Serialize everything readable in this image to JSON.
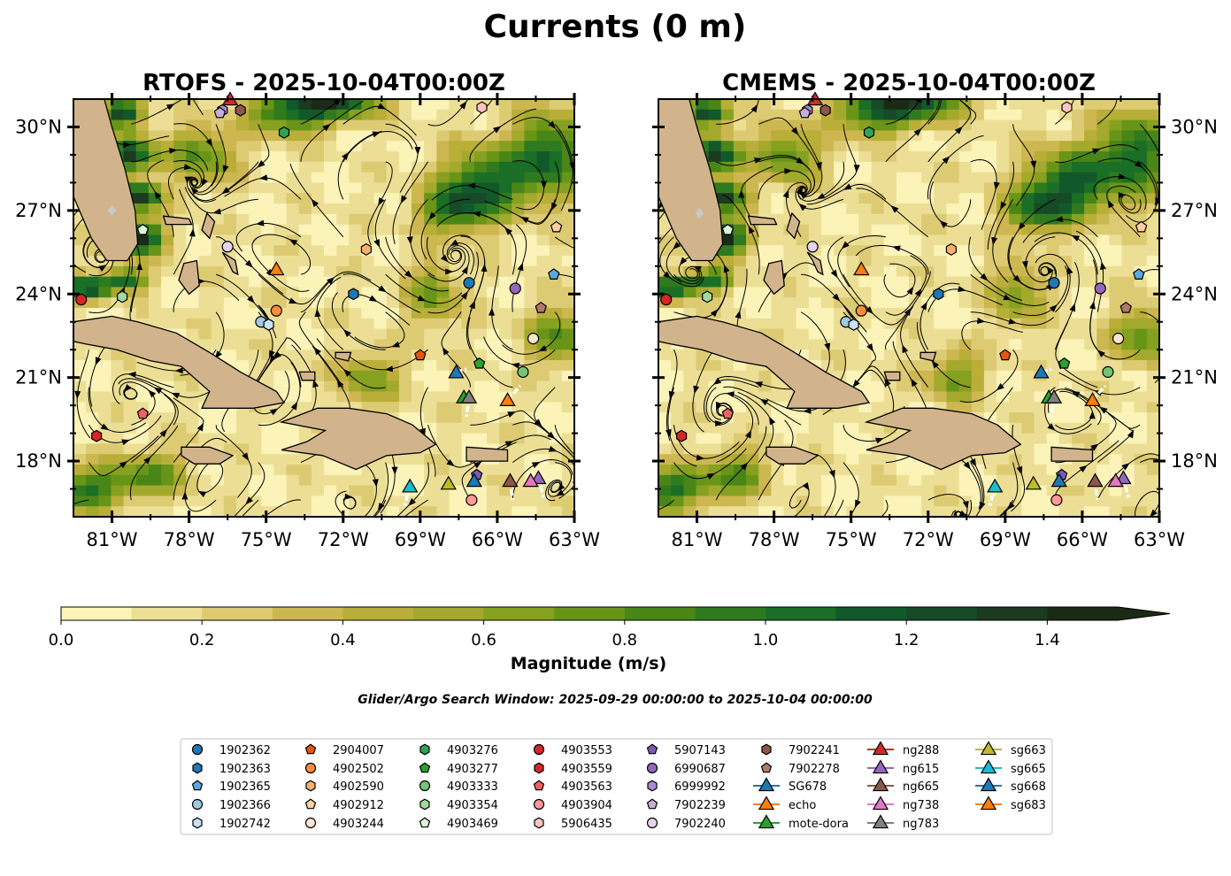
{
  "chart_data": {
    "type": "map",
    "title": "Currents (0 m)",
    "panels": [
      {
        "title": "RTOFS - 2025-10-04T00:00Z",
        "model": "RTOFS",
        "shadow_lon": -81,
        "shadow_lat": 27
      },
      {
        "title": "CMEMS - 2025-10-04T00:00Z",
        "model": "CMEMS",
        "shadow_lon": -80.9,
        "shadow_lat": 26.9
      }
    ],
    "extent": {
      "lon_min": -82.5,
      "lon_max": -63,
      "lat_min": 16,
      "lat_max": 31
    },
    "x_ticks": [
      {
        "value": -81,
        "label": "81°W"
      },
      {
        "value": -78,
        "label": "78°W"
      },
      {
        "value": -75,
        "label": "75°W"
      },
      {
        "value": -72,
        "label": "72°W"
      },
      {
        "value": -69,
        "label": "69°W"
      },
      {
        "value": -66,
        "label": "66°W"
      },
      {
        "value": -63,
        "label": "63°W"
      }
    ],
    "y_ticks": [
      {
        "value": 18,
        "label": "18°N"
      },
      {
        "value": 21,
        "label": "21°N"
      },
      {
        "value": 24,
        "label": "24°N"
      },
      {
        "value": 27,
        "label": "27°N"
      },
      {
        "value": 30,
        "label": "30°N"
      }
    ],
    "colorbar": {
      "label": "Magnitude (m/s)",
      "min": 0,
      "max": 1.5,
      "step": 0.1,
      "extend": "max",
      "ticks": [
        "0.0",
        "0.2",
        "0.4",
        "0.6",
        "0.8",
        "1.0",
        "1.2",
        "1.4"
      ],
      "colors": [
        "#fbf3b8",
        "#ecdf95",
        "#ddcb73",
        "#cdb751",
        "#b9ae37",
        "#a3a92c",
        "#86a020",
        "#689518",
        "#4a8617",
        "#2f7a1f",
        "#1a6e26",
        "#11592a",
        "#174a27",
        "#1c3a20",
        "#1b2a16"
      ]
    },
    "search_window": "Glider/Argo Search Window: 2025-09-29 00:00:00 to 2025-10-04 00:00:00",
    "land": [
      {
        "name": "Florida",
        "points": [
          [
            -82.5,
            31
          ],
          [
            -81.3,
            31
          ],
          [
            -81,
            30
          ],
          [
            -80.5,
            28.5
          ],
          [
            -80.1,
            27
          ],
          [
            -80,
            25.8
          ],
          [
            -80.4,
            25.2
          ],
          [
            -81.2,
            25.2
          ],
          [
            -81.8,
            26
          ],
          [
            -82.5,
            27.5
          ]
        ]
      },
      {
        "name": "Cuba",
        "points": [
          [
            -82.5,
            23
          ],
          [
            -81,
            23.2
          ],
          [
            -80,
            23
          ],
          [
            -78.5,
            22.6
          ],
          [
            -77.2,
            21.9
          ],
          [
            -76,
            21.2
          ],
          [
            -74.6,
            20.5
          ],
          [
            -74.3,
            20.1
          ],
          [
            -75.5,
            19.9
          ],
          [
            -77.5,
            19.9
          ],
          [
            -77.2,
            20.5
          ],
          [
            -78.3,
            21.4
          ],
          [
            -79.5,
            21.6
          ],
          [
            -80.8,
            22
          ],
          [
            -82,
            22.2
          ],
          [
            -82.5,
            22.3
          ]
        ]
      },
      {
        "name": "Hispaniola",
        "points": [
          [
            -74.4,
            19.4
          ],
          [
            -73,
            19.9
          ],
          [
            -71.8,
            19.9
          ],
          [
            -70.3,
            19.7
          ],
          [
            -69.3,
            19.3
          ],
          [
            -68.4,
            18.6
          ],
          [
            -69,
            18.3
          ],
          [
            -70.3,
            18.2
          ],
          [
            -71.5,
            17.7
          ],
          [
            -72.8,
            18.2
          ],
          [
            -74.4,
            18.4
          ],
          [
            -73.4,
            18.7
          ],
          [
            -72.7,
            19.1
          ]
        ]
      },
      {
        "name": "Jamaica",
        "points": [
          [
            -78.3,
            18.5
          ],
          [
            -77.2,
            18.5
          ],
          [
            -76.3,
            18.2
          ],
          [
            -76.8,
            17.9
          ],
          [
            -77.8,
            17.9
          ],
          [
            -78.3,
            18.2
          ]
        ]
      },
      {
        "name": "Puerto Rico",
        "points": [
          [
            -67.2,
            18.5
          ],
          [
            -65.6,
            18.4
          ],
          [
            -65.6,
            18
          ],
          [
            -67.2,
            18
          ]
        ]
      },
      {
        "name": "Andros",
        "points": [
          [
            -78.2,
            25.1
          ],
          [
            -77.7,
            25.2
          ],
          [
            -77.6,
            24.3
          ],
          [
            -78,
            24
          ],
          [
            -78.4,
            24.5
          ]
        ]
      },
      {
        "name": "Grand Bahama",
        "points": [
          [
            -79,
            26.8
          ],
          [
            -78,
            26.7
          ],
          [
            -77.9,
            26.5
          ],
          [
            -78.9,
            26.5
          ]
        ]
      },
      {
        "name": "Abaco",
        "points": [
          [
            -77.3,
            26.9
          ],
          [
            -77,
            26.6
          ],
          [
            -77.2,
            26
          ],
          [
            -77.5,
            26.3
          ]
        ]
      },
      {
        "name": "Eleuthera",
        "points": [
          [
            -76.7,
            25.5
          ],
          [
            -76.2,
            25.2
          ],
          [
            -76.1,
            24.7
          ],
          [
            -76.3,
            24.8
          ],
          [
            -76.5,
            25.2
          ]
        ]
      },
      {
        "name": "Long Island",
        "points": [
          [
            -75.3,
            23.6
          ],
          [
            -75,
            23.2
          ],
          [
            -74.9,
            23.1
          ],
          [
            -75.1,
            23.4
          ]
        ]
      },
      {
        "name": "Inagua",
        "points": [
          [
            -73.7,
            21.2
          ],
          [
            -73.1,
            21.2
          ],
          [
            -73.1,
            20.9
          ],
          [
            -73.6,
            20.9
          ]
        ]
      },
      {
        "name": "Caicos",
        "points": [
          [
            -72.3,
            21.9
          ],
          [
            -71.7,
            21.9
          ],
          [
            -71.8,
            21.6
          ],
          [
            -72.3,
            21.7
          ]
        ]
      }
    ],
    "markers": [
      {
        "id": "1902362",
        "shape": "circle",
        "color": "#1f77b4"
      },
      {
        "id": "1902363",
        "shape": "hexagon",
        "color": "#1f77b4"
      },
      {
        "id": "1902365",
        "shape": "pentagon",
        "color": "#5aa8de"
      },
      {
        "id": "1902366",
        "shape": "circle",
        "color": "#9ecae1"
      },
      {
        "id": "1902742",
        "shape": "hexagon",
        "color": "#c6e2f5"
      },
      {
        "id": "2904007",
        "shape": "pentagon",
        "color": "#e6550d"
      },
      {
        "id": "4902502",
        "shape": "circle",
        "color": "#fd8d3c"
      },
      {
        "id": "4902590",
        "shape": "hexagon",
        "color": "#fdae6b"
      },
      {
        "id": "4902912",
        "shape": "pentagon",
        "color": "#fdd0a2"
      },
      {
        "id": "4903244",
        "shape": "circle",
        "color": "#fee6ce"
      },
      {
        "id": "4903276",
        "shape": "hexagon",
        "color": "#31a354"
      },
      {
        "id": "4903277",
        "shape": "pentagon",
        "color": "#2ca02c"
      },
      {
        "id": "4903333",
        "shape": "circle",
        "color": "#74c476"
      },
      {
        "id": "4903354",
        "shape": "hexagon",
        "color": "#a1d99b"
      },
      {
        "id": "4903469",
        "shape": "pentagon",
        "color": "#d9f4d3"
      },
      {
        "id": "4903553",
        "shape": "circle",
        "color": "#d62728"
      },
      {
        "id": "4903559",
        "shape": "hexagon",
        "color": "#d62728"
      },
      {
        "id": "4903563",
        "shape": "pentagon",
        "color": "#f06262"
      },
      {
        "id": "4903904",
        "shape": "circle",
        "color": "#ff9896"
      },
      {
        "id": "5906435",
        "shape": "hexagon",
        "color": "#ffc4c2"
      },
      {
        "id": "5907143",
        "shape": "pentagon",
        "color": "#7b5ab6"
      },
      {
        "id": "6990687",
        "shape": "circle",
        "color": "#9467bd"
      },
      {
        "id": "6999992",
        "shape": "hexagon",
        "color": "#a98bd3"
      },
      {
        "id": "7902239",
        "shape": "pentagon",
        "color": "#c5b0d5"
      },
      {
        "id": "7902240",
        "shape": "circle",
        "color": "#e5d3f0"
      },
      {
        "id": "7902241",
        "shape": "hexagon",
        "color": "#8c564b"
      },
      {
        "id": "7902278",
        "shape": "pentagon",
        "color": "#b07a6a"
      },
      {
        "id": "SG678",
        "shape": "triangle",
        "color": "#1f77b4"
      },
      {
        "id": "echo",
        "shape": "triangle",
        "color": "#ff7f0e"
      },
      {
        "id": "mote-dora",
        "shape": "triangle",
        "color": "#2ca02c"
      },
      {
        "id": "ng288",
        "shape": "triangle",
        "color": "#d62728"
      },
      {
        "id": "ng615",
        "shape": "triangle",
        "color": "#9467bd"
      },
      {
        "id": "ng665",
        "shape": "triangle",
        "color": "#8c564b"
      },
      {
        "id": "ng738",
        "shape": "triangle",
        "color": "#e377c2"
      },
      {
        "id": "ng783",
        "shape": "triangle",
        "color": "#7f7f7f"
      },
      {
        "id": "sg663",
        "shape": "triangle",
        "color": "#bcbd22"
      },
      {
        "id": "sg665",
        "shape": "triangle",
        "color": "#17becf"
      },
      {
        "id": "sg668",
        "shape": "triangle",
        "color": "#1f77b4"
      },
      {
        "id": "sg683",
        "shape": "triangle",
        "color": "#ff7f0e"
      }
    ],
    "positions": [
      {
        "id": "1902362",
        "lon": -67.1,
        "lat": 24.4
      },
      {
        "id": "1902363",
        "lon": -71.6,
        "lat": 24.0
      },
      {
        "id": "1902365",
        "lon": -63.8,
        "lat": 24.7
      },
      {
        "id": "1902366",
        "lon": -75.2,
        "lat": 23.0
      },
      {
        "id": "1902742",
        "lon": -74.9,
        "lat": 22.9
      },
      {
        "id": "2904007",
        "lon": -69.0,
        "lat": 21.8
      },
      {
        "id": "4902502",
        "lon": -74.6,
        "lat": 23.4
      },
      {
        "id": "4902590",
        "lon": -71.1,
        "lat": 25.6
      },
      {
        "id": "4902912",
        "lon": -63.7,
        "lat": 26.4
      },
      {
        "id": "4903244",
        "lon": -64.6,
        "lat": 22.4
      },
      {
        "id": "4903276",
        "lon": -74.3,
        "lat": 29.8
      },
      {
        "id": "4903277",
        "lon": -66.7,
        "lat": 21.5
      },
      {
        "id": "4903333",
        "lon": -65.0,
        "lat": 21.2
      },
      {
        "id": "4903354",
        "lon": -80.6,
        "lat": 23.9
      },
      {
        "id": "4903469",
        "lon": -79.8,
        "lat": 26.3
      },
      {
        "id": "4903553",
        "lon": -82.2,
        "lat": 23.8
      },
      {
        "id": "4903559",
        "lon": -81.6,
        "lat": 18.9
      },
      {
        "id": "4903563",
        "lon": -79.8,
        "lat": 19.7
      },
      {
        "id": "4903904",
        "lon": -67.0,
        "lat": 16.6
      },
      {
        "id": "5906435",
        "lon": -66.6,
        "lat": 30.7
      },
      {
        "id": "5907143",
        "lon": -66.8,
        "lat": 17.5
      },
      {
        "id": "6990687",
        "lon": -65.3,
        "lat": 24.2
      },
      {
        "id": "6999992",
        "lon": -76.7,
        "lat": 30.6
      },
      {
        "id": "7902239",
        "lon": -76.8,
        "lat": 30.5
      },
      {
        "id": "7902240",
        "lon": -76.5,
        "lat": 25.7
      },
      {
        "id": "7902241",
        "lon": -76.0,
        "lat": 30.6
      },
      {
        "id": "7902278",
        "lon": -64.3,
        "lat": 23.5
      },
      {
        "id": "SG678",
        "lon": -67.6,
        "lat": 21.2
      },
      {
        "id": "echo",
        "lon": -74.6,
        "lat": 24.9
      },
      {
        "id": "mote-dora",
        "lon": -67.3,
        "lat": 20.3
      },
      {
        "id": "ng288",
        "lon": -76.4,
        "lat": 31.0
      },
      {
        "id": "ng615",
        "lon": -64.4,
        "lat": 17.4
      },
      {
        "id": "ng665",
        "lon": -65.5,
        "lat": 17.3
      },
      {
        "id": "ng738",
        "lon": -64.7,
        "lat": 17.3
      },
      {
        "id": "ng783",
        "lon": -67.1,
        "lat": 20.3
      },
      {
        "id": "sg663",
        "lon": -67.9,
        "lat": 17.2
      },
      {
        "id": "sg665",
        "lon": -69.4,
        "lat": 17.1
      },
      {
        "id": "sg668",
        "lon": -66.9,
        "lat": 17.3
      },
      {
        "id": "sg683",
        "lon": -65.6,
        "lat": 20.2
      }
    ],
    "tracks": [
      {
        "id": "SG678",
        "points": [
          [
            -67.6,
            21.2
          ],
          [
            -67.2,
            21.3
          ]
        ]
      },
      {
        "id": "mote-dora",
        "points": [
          [
            -67.1,
            20.3
          ],
          [
            -67.2,
            19.6
          ]
        ]
      },
      {
        "id": "sg683",
        "points": [
          [
            -65.6,
            20.2
          ],
          [
            -65.1,
            20.7
          ]
        ]
      },
      {
        "id": "sg665",
        "points": [
          [
            -69.4,
            17.1
          ],
          [
            -69.6,
            16.4
          ]
        ]
      },
      {
        "id": "ng665",
        "points": [
          [
            -65.5,
            17.3
          ],
          [
            -65.4,
            16.6
          ]
        ]
      },
      {
        "id": "ng615",
        "points": [
          [
            -64.4,
            17.4
          ],
          [
            -64.2,
            16.7
          ]
        ]
      }
    ],
    "high_speed": [
      [
        -80.6,
        30.5,
        0.9,
        0.5,
        1.2
      ],
      [
        -80.3,
        29,
        0.9,
        0.6,
        1.3
      ],
      [
        -80.1,
        27.5,
        1.0,
        0.5,
        1.3
      ],
      [
        -80.0,
        26,
        1.0,
        0.6,
        1.4
      ],
      [
        -80.5,
        24.5,
        0.9,
        0.4,
        1.0
      ],
      [
        -81.8,
        24.2,
        0.8,
        0.4,
        0.9
      ],
      [
        -83.0,
        24.3,
        0.9,
        0.4,
        0.8
      ],
      [
        -74.0,
        30.6,
        1.6,
        0.8,
        1.0
      ],
      [
        -72.0,
        30.9,
        1.6,
        0.6,
        0.9
      ],
      [
        -66.5,
        28.0,
        1.6,
        1.2,
        1.0
      ],
      [
        -64.0,
        29.0,
        1.4,
        1.5,
        1.0
      ],
      [
        -67.8,
        27.0,
        1.3,
        0.8,
        0.8
      ],
      [
        -63.6,
        22.5,
        1.2,
        1.0,
        0.7
      ],
      [
        -79.5,
        17.5,
        1.3,
        0.8,
        0.7
      ],
      [
        -82.0,
        17.0,
        1.4,
        0.8,
        0.9
      ],
      [
        -71.0,
        21.0,
        1.2,
        0.9,
        0.6
      ],
      [
        -77.5,
        29.0,
        1.3,
        1.0,
        0.7
      ],
      [
        -68.5,
        24.0,
        1.0,
        1.1,
        0.6
      ]
    ]
  }
}
